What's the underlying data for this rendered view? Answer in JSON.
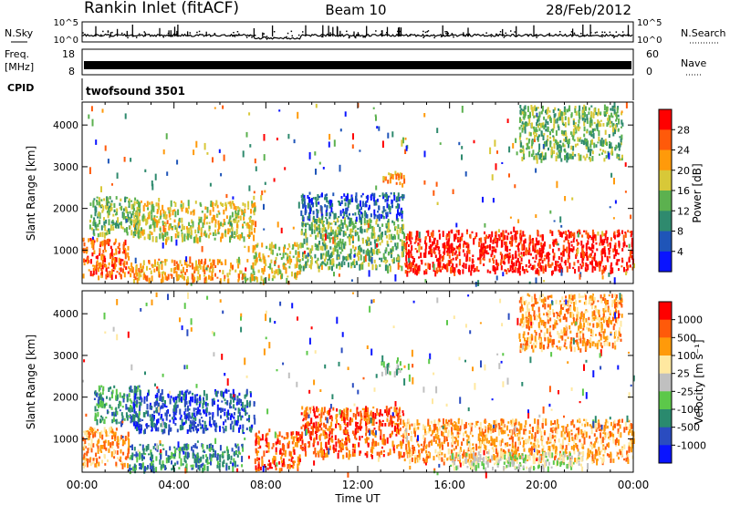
{
  "header": {
    "station": "Rankin Inlet (fitACF)",
    "beam": "Beam 10",
    "date": "28/Feb/2012"
  },
  "panels": {
    "nsky": {
      "label": "N.Sky",
      "top_tick": "10^5",
      "bottom_tick": "10^0",
      "right_label": "N.Search",
      "right_top": "10^5",
      "right_bottom": "10^0"
    },
    "freq": {
      "label": "Freq.",
      "unit": "[MHz]",
      "left_top": "18",
      "left_bottom": "8",
      "right_top": "60",
      "right_bottom": "0",
      "right_label": "Nave"
    },
    "cpid": {
      "label": "CPID",
      "value": "twofsound 3501"
    }
  },
  "chart_data": [
    {
      "type": "heatmap",
      "name": "power",
      "ylabel": "Slant Range [km]",
      "xlabel": "",
      "x_range_hours": [
        0,
        24
      ],
      "ylim": [
        200,
        4550
      ],
      "yticks": [
        "1000",
        "2000",
        "3000",
        "4000"
      ],
      "colorbar": {
        "label": "Power [dB]",
        "ticks": [
          "4",
          "8",
          "12",
          "16",
          "20",
          "24",
          "28"
        ],
        "colors": [
          "#0a14ff",
          "#1f55b8",
          "#2f8a6e",
          "#5cb14f",
          "#d8c838",
          "#ff9a0a",
          "#ff5a0a",
          "#ff0000"
        ]
      },
      "regions": [
        {
          "t0": 0.0,
          "t1": 2.0,
          "r0": 400,
          "r1": 1300,
          "level": 6
        },
        {
          "t0": 0.3,
          "t1": 2.5,
          "r0": 1400,
          "r1": 2300,
          "level": 3
        },
        {
          "t0": 2.2,
          "t1": 7.5,
          "r0": 1300,
          "r1": 2200,
          "level": 4
        },
        {
          "t0": 2.0,
          "t1": 7.0,
          "r0": 300,
          "r1": 800,
          "level": 5
        },
        {
          "t0": 7.0,
          "t1": 9.5,
          "r0": 300,
          "r1": 1200,
          "level": 4
        },
        {
          "t0": 9.5,
          "t1": 14.0,
          "r0": 600,
          "r1": 1800,
          "level": 3
        },
        {
          "t0": 13.0,
          "t1": 14.0,
          "r0": 2600,
          "r1": 2900,
          "level": 5
        },
        {
          "t0": 14.0,
          "t1": 24.0,
          "r0": 500,
          "r1": 1500,
          "level": 7
        },
        {
          "t0": 9.5,
          "t1": 14.0,
          "r0": 1800,
          "r1": 2400,
          "level": 1
        },
        {
          "t0": 19.0,
          "t1": 23.5,
          "r0": 3200,
          "r1": 4500,
          "level": 3
        }
      ]
    },
    {
      "type": "heatmap",
      "name": "velocity",
      "ylabel": "Slant Range [km]",
      "xlabel": "Time UT",
      "x_range_hours": [
        0,
        24
      ],
      "xticks": [
        "00:00",
        "04:00",
        "08:00",
        "12:00",
        "16:00",
        "20:00",
        "00:00"
      ],
      "ylim": [
        200,
        4550
      ],
      "yticks": [
        "1000",
        "2000",
        "3000",
        "4000"
      ],
      "colorbar": {
        "label": "Velocity [m s⁻¹]",
        "ticks": [
          "1000",
          "500",
          "100",
          "25",
          "-25",
          "-100",
          "-500",
          "-1000"
        ],
        "colors": [
          "#0a14ff",
          "#2a4cc0",
          "#2a8a6e",
          "#5cc84a",
          "#c0c0c0",
          "#ffe8a0",
          "#ff9a0a",
          "#ff5a0a",
          "#ff0000"
        ]
      },
      "regions": [
        {
          "t0": 0.0,
          "t1": 2.0,
          "r0": 400,
          "r1": 1300,
          "level": 6
        },
        {
          "t0": 0.5,
          "t1": 2.5,
          "r0": 1400,
          "r1": 2300,
          "level": 2
        },
        {
          "t0": 2.2,
          "t1": 7.5,
          "r0": 1200,
          "r1": 2200,
          "level": 1
        },
        {
          "t0": 2.0,
          "t1": 7.0,
          "r0": 300,
          "r1": 900,
          "level": 2
        },
        {
          "t0": 7.5,
          "t1": 9.5,
          "r0": 300,
          "r1": 1200,
          "level": 7
        },
        {
          "t0": 9.5,
          "t1": 14.0,
          "r0": 600,
          "r1": 1800,
          "level": 7
        },
        {
          "t0": 13.0,
          "t1": 14.0,
          "r0": 2600,
          "r1": 2900,
          "level": 3
        },
        {
          "t0": 14.0,
          "t1": 24.0,
          "r0": 500,
          "r1": 1500,
          "level": 6
        },
        {
          "t0": 16.0,
          "t1": 22.0,
          "r0": 300,
          "r1": 700,
          "level": 4
        },
        {
          "t0": 19.0,
          "t1": 23.5,
          "r0": 3200,
          "r1": 4500,
          "level": 6
        }
      ]
    }
  ]
}
